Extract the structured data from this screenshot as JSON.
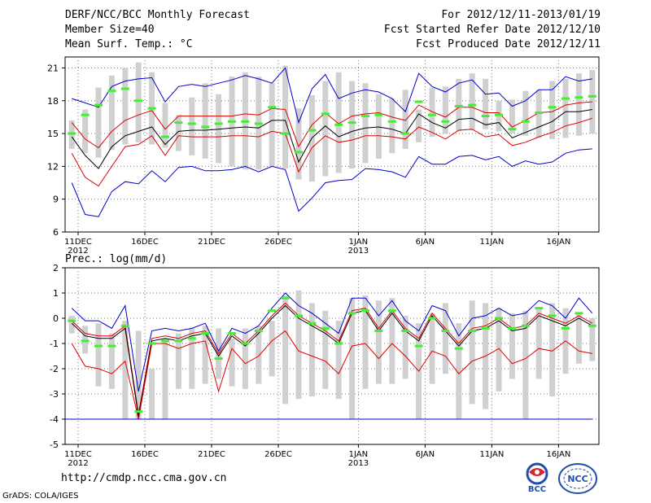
{
  "header": {
    "title": "DERF/NCC/BCC Monthly Forecast",
    "member_size": "Member Size=40",
    "variable": "Mean Surf. Temp.: °C",
    "for_range": "For 2012/12/11-2013/01/19",
    "start_date": "Fcst Started Refer Date 2012/12/10",
    "produced_date": "Fcst Produced Date 2012/12/11"
  },
  "footer": {
    "url": "http://cmdp.ncc.cma.gov.cn",
    "grads": "GrADS: COLA/IGES",
    "logo_bcc": "BCC",
    "logo_ncc": "NCC"
  },
  "colors": {
    "box": "#d0d0d0",
    "median": "#44ee33",
    "mean": "#000000",
    "stdev": "#dd0000",
    "extreme": "#0000cc"
  },
  "chart_data": [
    {
      "type": "line",
      "title": "Mean Surf. Temp.: °C",
      "ylabel": "°C",
      "ylim": [
        6,
        22
      ],
      "yticks": [
        6,
        9,
        12,
        15,
        18,
        21
      ],
      "xlim": [
        0,
        40
      ],
      "xticks": [
        {
          "x": 0,
          "label": "11DEC",
          "sub": "2012"
        },
        {
          "x": 5,
          "label": "16DEC",
          "sub": ""
        },
        {
          "x": 10,
          "label": "21DEC",
          "sub": ""
        },
        {
          "x": 15,
          "label": "26DEC",
          "sub": ""
        },
        {
          "x": 21,
          "label": "1JAN",
          "sub": "2013"
        },
        {
          "x": 26,
          "label": "6JAN",
          "sub": ""
        },
        {
          "x": 31,
          "label": "11JAN",
          "sub": ""
        },
        {
          "x": 36,
          "label": "16JAN",
          "sub": ""
        }
      ],
      "grid": true,
      "box_low": [
        13.6,
        13.2,
        12.8,
        13.5,
        14.0,
        14.2,
        14.0,
        13.7,
        13.4,
        13.0,
        12.7,
        12.3,
        12.0,
        11.7,
        11.7,
        12.0,
        11.8,
        10.8,
        10.6,
        11.1,
        11.4,
        11.8,
        12.3,
        12.7,
        13.2,
        13.6,
        14.2,
        14.7,
        15.0,
        15.2,
        15.3,
        15.4,
        15.2,
        15.0,
        14.8,
        14.6,
        14.5,
        14.6,
        14.8,
        15.0
      ],
      "box_high": [
        16.2,
        17.2,
        19.2,
        20.3,
        21.0,
        21.5,
        20.6,
        17.8,
        16.7,
        18.3,
        19.6,
        18.6,
        20.2,
        20.6,
        20.2,
        19.6,
        21.2,
        17.3,
        18.5,
        19.8,
        20.6,
        19.8,
        19.6,
        18.6,
        18.2,
        19.0,
        17.2,
        19.2,
        19.3,
        20.0,
        20.5,
        20.0,
        18.0,
        18.1,
        18.9,
        19.0,
        19.8,
        20.0,
        20.5,
        20.8
      ],
      "median": [
        15.0,
        16.7,
        17.6,
        18.9,
        19.1,
        18.0,
        17.3,
        14.7,
        16.0,
        15.9,
        15.6,
        15.9,
        16.1,
        16.1,
        15.9,
        17.4,
        15.0,
        13.3,
        15.3,
        16.8,
        15.8,
        16.0,
        16.6,
        16.7,
        16.1,
        15.0,
        17.9,
        16.7,
        16.1,
        17.5,
        17.6,
        16.6,
        16.7,
        15.4,
        16.1,
        16.9,
        17.4,
        18.2,
        18.3,
        18.4
      ],
      "series": [
        {
          "name": "max",
          "color_key": "extreme",
          "values": [
            18.2,
            17.8,
            17.4,
            19.3,
            19.8,
            20.0,
            20.1,
            17.9,
            19.3,
            19.5,
            19.3,
            19.6,
            19.9,
            20.3,
            20.0,
            19.6,
            21.0,
            16.0,
            19.1,
            20.4,
            18.2,
            18.7,
            19.0,
            18.8,
            18.2,
            17.0,
            20.5,
            19.3,
            18.8,
            19.6,
            19.9,
            18.6,
            18.7,
            17.5,
            18.0,
            19.0,
            19.0,
            20.2,
            19.8,
            20.0
          ]
        },
        {
          "name": "mean+sd",
          "color_key": "stdev",
          "values": [
            16.0,
            14.5,
            13.7,
            15.2,
            16.2,
            16.7,
            17.1,
            15.4,
            16.6,
            16.6,
            16.6,
            16.6,
            16.6,
            16.8,
            16.7,
            17.3,
            17.2,
            13.8,
            15.8,
            16.9,
            15.9,
            16.6,
            16.8,
            16.9,
            16.5,
            16.2,
            17.6,
            17.0,
            16.5,
            17.4,
            17.4,
            16.9,
            16.9,
            15.6,
            16.2,
            16.9,
            17.0,
            17.6,
            17.8,
            17.9
          ]
        },
        {
          "name": "mean",
          "color_key": "mean",
          "values": [
            14.7,
            13.0,
            11.8,
            13.8,
            14.8,
            15.2,
            15.6,
            14.0,
            15.2,
            15.3,
            15.3,
            15.4,
            15.5,
            15.6,
            15.5,
            16.2,
            16.2,
            12.4,
            14.6,
            15.7,
            14.7,
            15.2,
            15.5,
            15.6,
            15.4,
            15.0,
            16.8,
            16.0,
            15.5,
            16.3,
            16.4,
            15.8,
            16.0,
            14.6,
            15.1,
            15.6,
            16.1,
            17.0,
            17.0,
            17.2
          ]
        },
        {
          "name": "mean-sd",
          "color_key": "stdev",
          "values": [
            13.2,
            11.0,
            10.2,
            12.0,
            13.8,
            14.0,
            14.8,
            13.0,
            14.8,
            14.7,
            14.7,
            14.7,
            14.8,
            14.8,
            14.7,
            15.2,
            15.0,
            11.5,
            13.7,
            14.8,
            14.2,
            14.4,
            14.8,
            14.8,
            14.7,
            14.5,
            15.6,
            15.1,
            14.5,
            15.3,
            15.4,
            14.7,
            14.9,
            13.9,
            14.2,
            14.7,
            15.1,
            15.7,
            16.0,
            16.4
          ]
        },
        {
          "name": "min",
          "color_key": "extreme",
          "values": [
            10.5,
            7.6,
            7.4,
            9.7,
            10.6,
            10.4,
            11.6,
            10.6,
            11.9,
            12.0,
            11.6,
            11.6,
            11.7,
            12.0,
            11.5,
            12.0,
            11.7,
            7.9,
            9.1,
            10.5,
            10.7,
            10.8,
            11.8,
            11.7,
            11.5,
            11.0,
            12.9,
            12.2,
            12.2,
            12.9,
            13.0,
            12.6,
            12.9,
            12.0,
            12.5,
            12.2,
            12.4,
            13.2,
            13.5,
            13.6
          ]
        }
      ]
    },
    {
      "type": "line",
      "title": "Prec.: log(mm/d)",
      "ylabel": "log(mm/d)",
      "ylim": [
        -5,
        2
      ],
      "yticks": [
        -5,
        -4,
        -3,
        -2,
        -1,
        0,
        1,
        2
      ],
      "xlim": [
        0,
        40
      ],
      "xticks": [
        {
          "x": 0,
          "label": "11DEC",
          "sub": "2012"
        },
        {
          "x": 5,
          "label": "16DEC",
          "sub": ""
        },
        {
          "x": 10,
          "label": "21DEC",
          "sub": ""
        },
        {
          "x": 15,
          "label": "26DEC",
          "sub": ""
        },
        {
          "x": 21,
          "label": "1JAN",
          "sub": "2013"
        },
        {
          "x": 26,
          "label": "6JAN",
          "sub": ""
        },
        {
          "x": 31,
          "label": "11JAN",
          "sub": ""
        },
        {
          "x": 36,
          "label": "16JAN",
          "sub": ""
        }
      ],
      "grid": true,
      "baseline": -4,
      "box_low": [
        -0.6,
        -1.4,
        -2.7,
        -2.8,
        -4.0,
        -4.0,
        -4.0,
        -4.0,
        -2.8,
        -2.8,
        -2.6,
        -2.4,
        -2.7,
        -2.8,
        -2.6,
        -2.3,
        -3.4,
        -3.2,
        -3.1,
        -2.8,
        -3.2,
        -4.0,
        -2.8,
        -2.6,
        -2.6,
        -2.4,
        -4.0,
        -2.6,
        -2.2,
        -4.0,
        -3.4,
        -3.6,
        -2.9,
        -2.4,
        -4.0,
        -2.4,
        -3.1,
        -2.2,
        -1.8,
        -1.7
      ],
      "box_high": [
        0.1,
        -0.3,
        -0.2,
        -0.6,
        -0.1,
        -0.5,
        -2.0,
        -0.8,
        -0.6,
        -0.4,
        -0.3,
        -0.4,
        -0.8,
        -0.4,
        -0.3,
        -0.1,
        0.9,
        1.1,
        0.6,
        0.3,
        -0.1,
        0.8,
        0.9,
        0.7,
        0.8,
        0.1,
        -0.2,
        0.2,
        0.6,
        -0.2,
        0.7,
        0.6,
        0.4,
        0.2,
        0.3,
        0.4,
        0.6,
        0.4,
        0.2,
        0.0
      ],
      "median": [
        -0.1,
        -0.9,
        -1.1,
        -1.1,
        -0.3,
        -3.7,
        -1.0,
        -0.9,
        -0.9,
        -0.8,
        -0.6,
        -1.6,
        -0.6,
        -1.0,
        -0.5,
        0.3,
        0.8,
        0.1,
        -0.2,
        -0.4,
        -1.0,
        0.2,
        0.3,
        -0.5,
        0.3,
        -0.5,
        -1.1,
        0.0,
        -0.5,
        -1.2,
        -0.5,
        -0.4,
        0.0,
        -0.4,
        -0.3,
        0.4,
        0.1,
        -0.4,
        0.2,
        -0.3
      ],
      "series": [
        {
          "name": "max",
          "color_key": "extreme",
          "values": [
            0.4,
            -0.1,
            -0.1,
            -0.4,
            0.5,
            -2.9,
            -0.5,
            -0.4,
            -0.5,
            -0.4,
            -0.2,
            -1.3,
            -0.4,
            -0.6,
            -0.3,
            0.4,
            1.0,
            0.5,
            0.2,
            -0.2,
            -0.6,
            0.8,
            0.8,
            0.1,
            0.7,
            -0.1,
            -0.5,
            0.5,
            0.3,
            -0.7,
            0.0,
            0.1,
            0.4,
            0.1,
            0.2,
            0.7,
            0.5,
            0.0,
            0.8,
            0.2
          ]
        },
        {
          "name": "mean+sd",
          "color_key": "stdev",
          "values": [
            -0.1,
            -0.6,
            -0.7,
            -0.7,
            -0.3,
            -3.8,
            -0.8,
            -0.7,
            -0.8,
            -0.6,
            -0.5,
            -1.4,
            -0.6,
            -1.0,
            -0.5,
            0.1,
            0.6,
            0.1,
            -0.2,
            -0.5,
            -0.9,
            0.3,
            0.4,
            -0.4,
            0.3,
            -0.4,
            -0.8,
            0.2,
            -0.4,
            -1.0,
            -0.4,
            -0.3,
            0.0,
            -0.4,
            -0.3,
            0.2,
            0.0,
            -0.2,
            0.1,
            -0.2
          ]
        },
        {
          "name": "mean",
          "color_key": "mean",
          "values": [
            -0.2,
            -0.7,
            -0.8,
            -0.8,
            -0.4,
            -3.9,
            -0.9,
            -0.8,
            -0.9,
            -0.7,
            -0.6,
            -1.5,
            -0.7,
            -1.1,
            -0.6,
            0.0,
            0.5,
            0.0,
            -0.3,
            -0.6,
            -1.0,
            0.2,
            0.3,
            -0.5,
            0.2,
            -0.5,
            -0.9,
            0.1,
            -0.5,
            -1.1,
            -0.5,
            -0.4,
            -0.1,
            -0.5,
            -0.4,
            0.1,
            -0.1,
            -0.3,
            0.0,
            -0.3
          ]
        },
        {
          "name": "mean-sd",
          "color_key": "stdev",
          "values": [
            -1.0,
            -1.9,
            -2.0,
            -2.2,
            -1.7,
            -4.0,
            -1.0,
            -1.0,
            -1.2,
            -1.0,
            -0.9,
            -2.9,
            -1.2,
            -1.8,
            -1.5,
            -0.9,
            -0.5,
            -1.3,
            -1.5,
            -1.7,
            -2.2,
            -1.1,
            -1.0,
            -1.6,
            -1.0,
            -1.5,
            -2.1,
            -1.3,
            -1.5,
            -2.2,
            -1.7,
            -1.5,
            -1.2,
            -1.8,
            -1.6,
            -1.2,
            -1.3,
            -0.9,
            -1.3,
            -1.4
          ]
        },
        {
          "name": "min",
          "color_key": "extreme",
          "values": [
            -4.0,
            -4.0,
            -4.0,
            -4.0,
            -4.0,
            -4.0,
            -4.0,
            -4.0,
            -4.0,
            -4.0,
            -4.0,
            -4.0,
            -4.0,
            -4.0,
            -4.0,
            -4.0,
            -4.0,
            -4.0,
            -4.0,
            -4.0,
            -4.0,
            -4.0,
            -4.0,
            -4.0,
            -4.0,
            -4.0,
            -4.0,
            -4.0,
            -4.0,
            -4.0,
            -4.0,
            -4.0,
            -4.0,
            -4.0,
            -4.0,
            -4.0,
            -4.0,
            -4.0,
            -4.0,
            -4.0
          ]
        }
      ]
    }
  ]
}
